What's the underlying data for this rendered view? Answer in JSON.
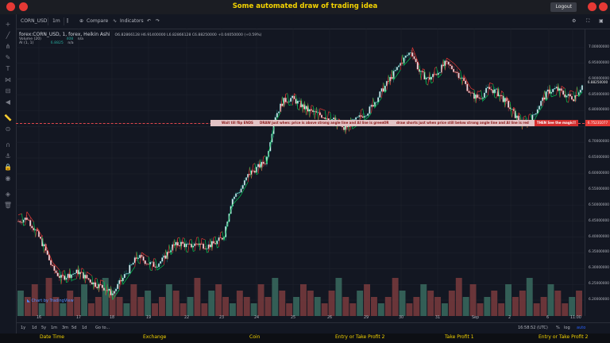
{
  "app": {
    "title": "Some automated draw of trading idea",
    "logout_label": "Logout"
  },
  "toolbar": {
    "symbol": "CORN_USD",
    "interval": "1m",
    "compare_label": "Compare",
    "indicators_label": "Indicators"
  },
  "legend": {
    "main": "forex:CORN_USD, 1, forex, Heikin Ashi",
    "ohlc": "O6.82866128 H6.91400000 L6.82866128 C6.88250000 +0.04050000 (+0.59%)",
    "volume_label": "Volume (20)",
    "volume_value": "408",
    "volume_na": "n/a",
    "ai_label": "AI (1, 1)",
    "ai_value": "6.8825",
    "ai_na": "n/a"
  },
  "annotation": {
    "part1": "Wait till flip ENDS",
    "part2": "DRAW just when: price is above strong angle line and AI line is green",
    "part3": "OR",
    "part4": "draw shorts just when price still below strong angle line and AI line is red",
    "magic": "THEN See the magic!!"
  },
  "price_axis": {
    "labels": [
      "7.00000000",
      "6.95000000",
      "6.90000000",
      "6.85000000",
      "6.80000000",
      "6.75000000",
      "6.70000000",
      "6.65000000",
      "6.60000000",
      "6.55000000",
      "6.50000000",
      "6.45000000",
      "6.40000000",
      "6.35000000",
      "6.30000000",
      "6.25000000",
      "6.20000000"
    ],
    "current_price": "6.88250000",
    "line_price": "6.75231077"
  },
  "time_axis": {
    "labels": [
      "16",
      "17",
      "18",
      "19",
      "22",
      "23",
      "24",
      "25",
      "26",
      "29",
      "30",
      "31",
      "Sep",
      "2",
      "6",
      "11:00"
    ]
  },
  "bottom": {
    "ranges": [
      "1y",
      "1d",
      "5y",
      "1m",
      "3m",
      "5d",
      "1d"
    ],
    "goto": "Go to...",
    "clock": "16:58:52 (UTC)",
    "pct": "%",
    "log": "log",
    "auto": "auto"
  },
  "attribution": "Chart by TradingView",
  "columns": [
    "Date Time",
    "Exchange",
    "Coin",
    "Entry or Take Profit 2",
    "Take Profit 1",
    "Entry or Take Profit 2"
  ],
  "colors": {
    "up": "#26a69a",
    "down": "#ef5350",
    "accent_yellow": "#f5d400",
    "ai_line_green": "#00c853",
    "ai_line_red": "#e53935"
  },
  "chart_data": {
    "type": "candlestick",
    "symbol": "forex:CORN_USD",
    "ylim": [
      6.18,
      7.03
    ],
    "x_ticks": [
      "16",
      "17",
      "18",
      "19",
      "22",
      "23",
      "24",
      "25",
      "26",
      "29",
      "30",
      "31",
      "Sep",
      "2",
      "6",
      "11:00"
    ],
    "approx_path": [
      [
        0,
        6.45
      ],
      [
        5,
        6.46
      ],
      [
        10,
        6.42
      ],
      [
        15,
        6.37
      ],
      [
        20,
        6.3
      ],
      [
        25,
        6.27
      ],
      [
        30,
        6.28
      ],
      [
        35,
        6.29
      ],
      [
        40,
        6.27
      ],
      [
        45,
        6.25
      ],
      [
        50,
        6.24
      ],
      [
        55,
        6.22
      ],
      [
        60,
        6.26
      ],
      [
        65,
        6.3
      ],
      [
        70,
        6.34
      ],
      [
        75,
        6.32
      ],
      [
        80,
        6.31
      ],
      [
        85,
        6.33
      ],
      [
        90,
        6.37
      ],
      [
        95,
        6.38
      ],
      [
        100,
        6.37
      ],
      [
        105,
        6.38
      ],
      [
        110,
        6.37
      ],
      [
        115,
        6.38
      ],
      [
        120,
        6.4
      ],
      [
        125,
        6.52
      ],
      [
        130,
        6.55
      ],
      [
        135,
        6.6
      ],
      [
        140,
        6.62
      ],
      [
        145,
        6.64
      ],
      [
        150,
        6.78
      ],
      [
        155,
        6.83
      ],
      [
        160,
        6.84
      ],
      [
        165,
        6.82
      ],
      [
        170,
        6.8
      ],
      [
        175,
        6.79
      ],
      [
        180,
        6.78
      ],
      [
        185,
        6.77
      ],
      [
        190,
        6.74
      ],
      [
        195,
        6.76
      ],
      [
        200,
        6.78
      ],
      [
        205,
        6.8
      ],
      [
        210,
        6.84
      ],
      [
        215,
        6.88
      ],
      [
        220,
        6.92
      ],
      [
        225,
        6.96
      ],
      [
        230,
        6.99
      ],
      [
        235,
        6.92
      ],
      [
        240,
        6.9
      ],
      [
        245,
        6.92
      ],
      [
        250,
        6.95
      ],
      [
        255,
        6.93
      ],
      [
        260,
        6.9
      ],
      [
        265,
        6.85
      ],
      [
        270,
        6.84
      ],
      [
        275,
        6.87
      ],
      [
        280,
        6.86
      ],
      [
        285,
        6.83
      ],
      [
        290,
        6.79
      ],
      [
        295,
        6.76
      ],
      [
        300,
        6.77
      ],
      [
        305,
        6.82
      ],
      [
        310,
        6.86
      ],
      [
        315,
        6.87
      ],
      [
        320,
        6.85
      ],
      [
        325,
        6.84
      ],
      [
        330,
        6.88
      ]
    ],
    "volume_approx": [
      4,
      3,
      5,
      2,
      6,
      3,
      2,
      4,
      3,
      5,
      2,
      3,
      6,
      4,
      3,
      2,
      5,
      3,
      4,
      2,
      3,
      5,
      4,
      2,
      3,
      6,
      2,
      4,
      5,
      3,
      2,
      4,
      3,
      2,
      5,
      3,
      6,
      4,
      2,
      3,
      5,
      4,
      3,
      2,
      4,
      6,
      3,
      2,
      4,
      5,
      3,
      2,
      3,
      6,
      4,
      2,
      3,
      5,
      4,
      3,
      2,
      4,
      6,
      3,
      5,
      2,
      3,
      4,
      2,
      5,
      3,
      4,
      6,
      2,
      3,
      5,
      4,
      2,
      3,
      4
    ]
  }
}
